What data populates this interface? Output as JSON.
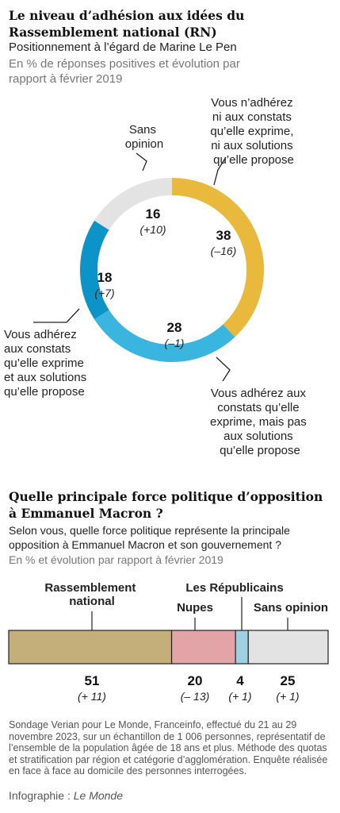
{
  "header": {
    "title": "Le niveau d’adhésion aux idées du Rassemblement national (RN)",
    "subtitle": "Positionnement à l’égard de Marine Le Pen",
    "note": "En % de réponses positives et évolution par rapport à février 2019"
  },
  "chart_data": [
    {
      "type": "pie",
      "title": "Le niveau d’adhésion aux idées du Rassemblement national (RN)",
      "slices": [
        {
          "label": "Vous n’adhérez ni aux constats qu’elle exprime, ni aux solutions qu’elle propose",
          "value": 38,
          "change": "(–16)",
          "color": "#e8b93c"
        },
        {
          "label": "Vous adhérez aux constats qu’elle exprime, mais pas aux solutions qu’elle propose",
          "value": 28,
          "change": "(–1)",
          "color": "#39b5e0"
        },
        {
          "label": "Vous adhérez aux constats qu’elle exprime et aux solutions qu’elle propose",
          "value": 18,
          "change": "(+7)",
          "color": "#0c93c7"
        },
        {
          "label": "Sans opinion",
          "value": 16,
          "change": "(+10)",
          "color": "#e3e3e3"
        }
      ]
    },
    {
      "type": "bar",
      "title": "Quelle principale force politique d’opposition à Emmanuel Macron ?",
      "orientation": "horizontal-stacked",
      "categories": [
        "Rassemblement national",
        "Nupes",
        "Les Républicains",
        "Sans opinion"
      ],
      "values": [
        51,
        20,
        4,
        25
      ],
      "changes": [
        "(+ 11)",
        "(– 13)",
        "(+ 1)",
        "(+ 1)"
      ],
      "colors": [
        "#c4ae7a",
        "#e3a4a8",
        "#9fd0e1",
        "#e3e3e3"
      ]
    }
  ],
  "donut_labels": {
    "l38": [
      "Vous n’adhérez",
      "ni aux constats",
      "qu’elle exprime,",
      "ni aux solutions",
      "qu’elle propose"
    ],
    "l28": [
      "Vous adhérez aux",
      "constats qu’elle",
      "exprime, mais pas",
      "aux solutions",
      "qu’elle propose"
    ],
    "l18": [
      "Vous adhérez",
      "aux constats",
      "qu’elle exprime",
      "et aux solutions",
      "qu’elle propose"
    ],
    "l16": [
      "Sans",
      "opinion"
    ]
  },
  "section2": {
    "title": "Quelle principale force politique d’opposition à Emmanuel Macron ?",
    "question": "Selon vous, quelle force politique représente la principale opposition à Emmanuel Macron et son gouvernement ?",
    "note": "En % et évolution par rapport à février 2019",
    "bar_labels": {
      "rn": [
        "Rassemblement",
        "national"
      ],
      "nupes": "Nupes",
      "lr": "Les Républicains",
      "so": "Sans opinion"
    }
  },
  "footer": {
    "source": "Sondage Verian pour Le Monde, Franceinfo, effectué du 21 au 29 novembre 2023, sur un échantillon de 1 006 personnes, représentatif de l’ensemble de la population âgée de 18 ans et plus. Méthode des quotas et stratification par région et catégorie d’agglomération. Enquête réalisée en face à face au domicile des personnes interrogées.",
    "credit_prefix": "Infographie : ",
    "credit_name": "Le Monde"
  }
}
